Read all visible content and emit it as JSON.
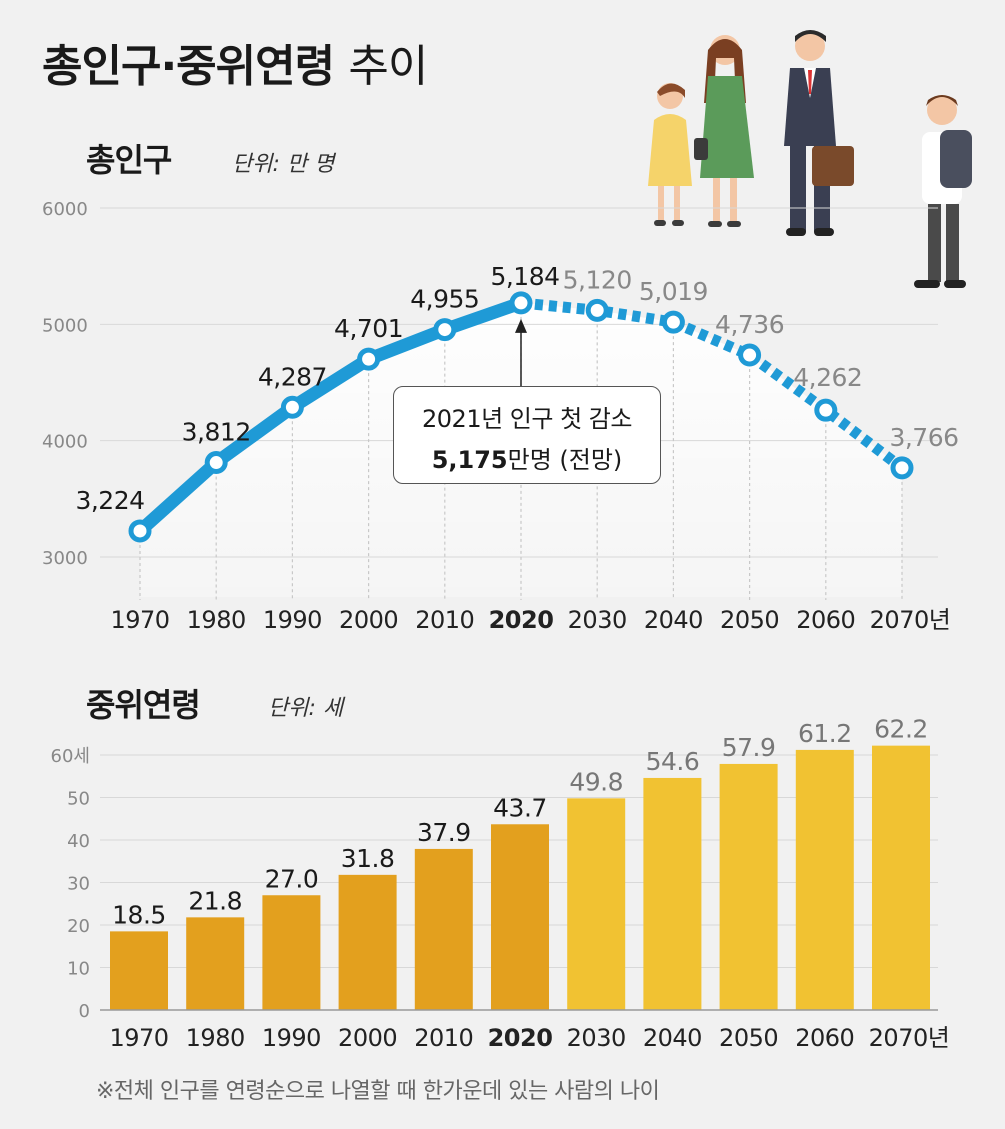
{
  "title": {
    "main": "총인구·중위연령",
    "sub": "추이"
  },
  "population": {
    "section_title": "총인구",
    "unit_label": "단위: 만 명",
    "annotation_line1": "2021년 인구 첫 감소",
    "annotation_value": "5,175",
    "annotation_rest": "만명 (전망)"
  },
  "median_age": {
    "section_title": "중위연령",
    "unit_label": "단위: 세"
  },
  "footnote": "※전체 인구를 연령순으로 나열할 때 한가운데 있는 사람의 나이",
  "colors": {
    "line": "#1f9ad6",
    "bar_past": "#e3a01e",
    "bar_future": "#f1c232",
    "grid": "#d8d8d8",
    "axis_text": "#888888"
  },
  "chart_data": [
    {
      "type": "line",
      "title": "총인구",
      "unit": "만 명",
      "x": [
        "1970",
        "1980",
        "1990",
        "2000",
        "2010",
        "2020",
        "2030",
        "2040",
        "2050",
        "2060",
        "2070"
      ],
      "x_suffix_last": "년",
      "highlight_x": "2020",
      "values": [
        3224,
        3812,
        4287,
        4701,
        4955,
        5184,
        5120,
        5019,
        4736,
        4262,
        3766
      ],
      "value_labels": [
        "3,224",
        "3,812",
        "4,287",
        "4,701",
        "4,955",
        "5,184",
        "5,120",
        "5,019",
        "4,736",
        "4,262",
        "3,766"
      ],
      "projected_from_index": 5,
      "y_ticks": [
        "6000",
        "5000",
        "4000",
        "3000"
      ],
      "ylim": [
        3000,
        6000
      ],
      "grid": true
    },
    {
      "type": "bar",
      "title": "중위연령",
      "unit": "세",
      "categories": [
        "1970",
        "1980",
        "1990",
        "2000",
        "2010",
        "2020",
        "2030",
        "2040",
        "2050",
        "2060",
        "2070"
      ],
      "x_suffix_last": "년",
      "highlight_x": "2020",
      "values": [
        18.5,
        21.8,
        27.0,
        31.8,
        37.9,
        43.7,
        49.8,
        54.6,
        57.9,
        61.2,
        62.2
      ],
      "value_labels": [
        "18.5",
        "21.8",
        "27.0",
        "31.8",
        "37.9",
        "43.7",
        "49.8",
        "54.6",
        "57.9",
        "61.2",
        "62.2"
      ],
      "projected_from_index": 6,
      "y_ticks": [
        "60세",
        "50",
        "40",
        "30",
        "20",
        "10",
        "0"
      ],
      "ylim": [
        0,
        60
      ],
      "grid": true
    }
  ]
}
